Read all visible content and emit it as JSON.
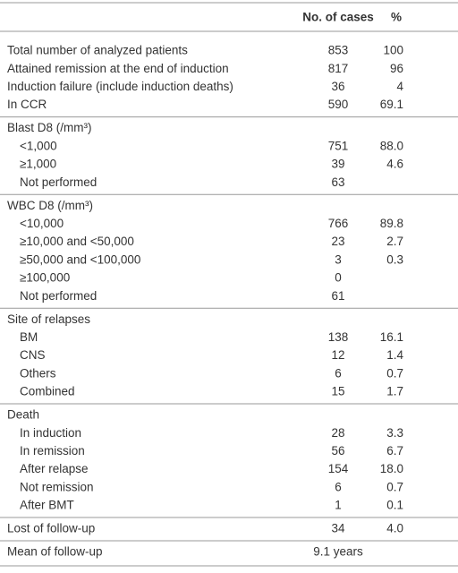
{
  "table": {
    "header": [
      "No. of cases",
      "%"
    ],
    "groups": [
      {
        "rows": [
          [
            "Total number of analyzed patients",
            "853",
            "100"
          ],
          [
            "Attained remission at the end of induction",
            "817",
            "96"
          ],
          [
            "Induction failure (include induction deaths)",
            "36",
            "4"
          ],
          [
            "In CCR",
            "590",
            "69.1"
          ]
        ]
      },
      {
        "title": "Blast D8 (/mm³)",
        "rows": [
          [
            "<1,000",
            "751",
            "88.0"
          ],
          [
            "≥1,000",
            "39",
            "4.6"
          ],
          [
            "Not performed",
            "63",
            null
          ]
        ]
      },
      {
        "title": "WBC D8 (/mm³)",
        "rows": [
          [
            "<10,000",
            "766",
            "89.8"
          ],
          [
            "≥10,000 and <50,000",
            "23",
            "2.7"
          ],
          [
            "≥50,000 and <100,000",
            "3",
            "0.3"
          ],
          [
            "≥100,000",
            "0",
            null
          ],
          [
            "Not performed",
            "61",
            null
          ]
        ]
      },
      {
        "title": "Site of relapses",
        "rows": [
          [
            "BM",
            "138",
            "16.1"
          ],
          [
            "CNS",
            "12",
            "1.4"
          ],
          [
            "Others",
            "6",
            "0.7"
          ],
          [
            "Combined",
            "15",
            "1.7"
          ]
        ]
      },
      {
        "title": "Death",
        "rows": [
          [
            "In induction",
            "28",
            "3.3"
          ],
          [
            "In remission",
            "56",
            "6.7"
          ],
          [
            "After relapse",
            "154",
            "18.0"
          ],
          [
            "Not remission",
            "6",
            "0.7"
          ],
          [
            "After BMT",
            "1",
            "0.1"
          ]
        ]
      },
      {
        "rows": [
          [
            "Lost of follow-up",
            "34",
            "4.0"
          ]
        ]
      },
      {
        "rows": [
          [
            "Mean of follow-up",
            "9.1 years",
            null
          ]
        ]
      }
    ]
  }
}
